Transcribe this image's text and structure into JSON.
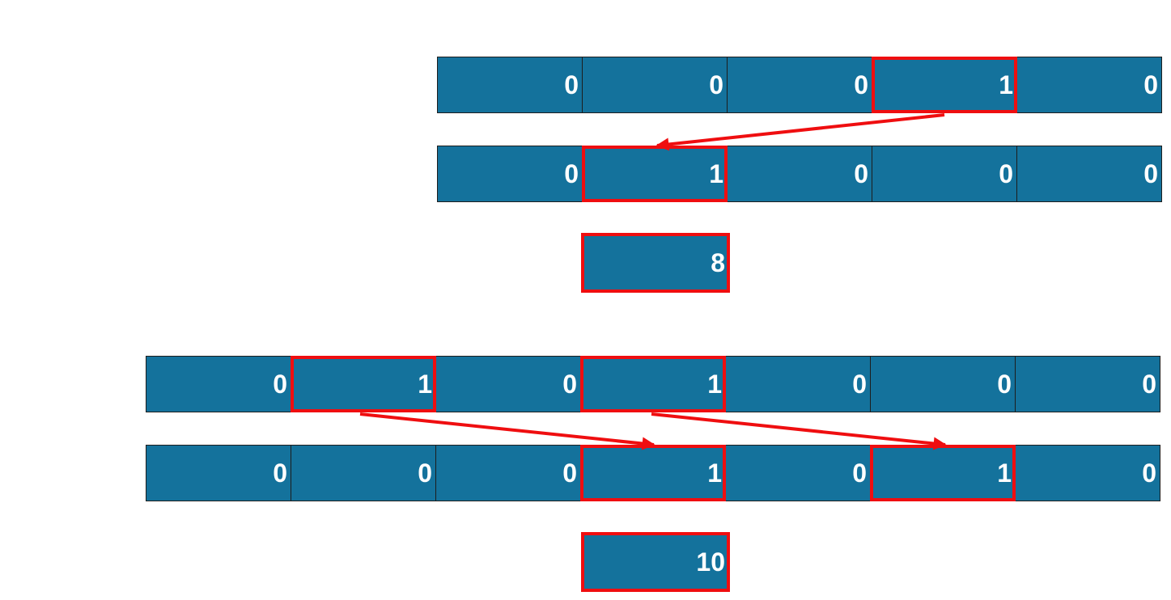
{
  "example1": {
    "top_row": [
      "0",
      "0",
      "0",
      "1",
      "0"
    ],
    "shifted_row": [
      "0",
      "1",
      "0",
      "0",
      "0"
    ],
    "result": "8"
  },
  "example2": {
    "top_row": [
      "0",
      "1",
      "0",
      "1",
      "0",
      "0",
      "0"
    ],
    "shifted_row": [
      "0",
      "0",
      "0",
      "1",
      "0",
      "1",
      "0"
    ],
    "result": "10"
  },
  "colors": {
    "cell_fill": "#14729c",
    "highlight_border": "#ef0e10",
    "arrow": "#ef0e10",
    "text": "#ffffff"
  }
}
